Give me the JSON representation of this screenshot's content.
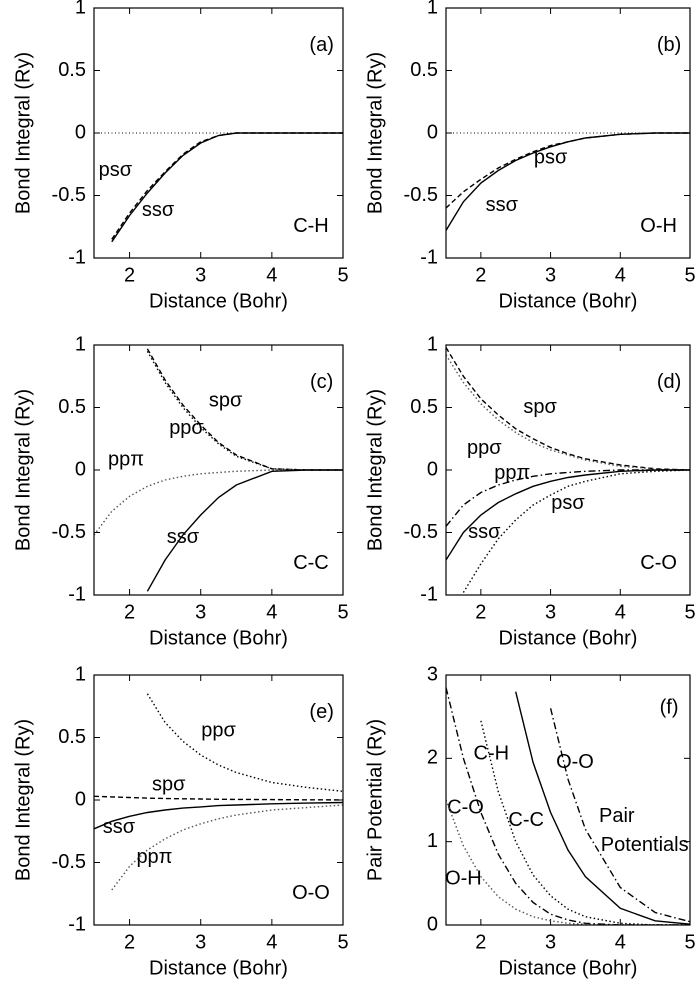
{
  "chart_data": [
    {
      "type": "line",
      "x_label": "Distance (Bohr)",
      "y_label": "Bond Integral (Ry)",
      "annotations": [
        "(a)",
        "C-H"
      ],
      "xlim": [
        1.5,
        5
      ],
      "xticks": [
        2,
        3,
        4,
        5
      ],
      "ylim": [
        -1,
        1
      ],
      "yticks": [
        -1,
        -0.5,
        0,
        0.5,
        1
      ],
      "zero_line": true,
      "x": [
        1.5,
        1.75,
        2,
        2.25,
        2.5,
        2.75,
        3,
        3.25,
        3.5,
        4,
        4.5,
        5
      ],
      "series": [
        {
          "name": "ssσ",
          "color": "#000000",
          "style": "solid",
          "values": [
            null,
            -0.87,
            -0.66,
            -0.48,
            -0.32,
            -0.18,
            -0.08,
            -0.02,
            0,
            0,
            0,
            0
          ]
        },
        {
          "name": "psσ",
          "color": "#000000",
          "style": "dashed",
          "values": [
            null,
            -0.85,
            -0.64,
            -0.46,
            -0.31,
            -0.17,
            -0.07,
            -0.02,
            0,
            0,
            0,
            0
          ]
        }
      ]
    },
    {
      "type": "line",
      "x_label": "Distance (Bohr)",
      "y_label": "Bond Integral (Ry)",
      "annotations": [
        "(b)",
        "O-H"
      ],
      "xlim": [
        1.5,
        5
      ],
      "xticks": [
        2,
        3,
        4,
        5
      ],
      "ylim": [
        -1,
        1
      ],
      "yticks": [
        -1,
        -0.5,
        0,
        0.5,
        1
      ],
      "zero_line": true,
      "x": [
        1.5,
        1.75,
        2,
        2.25,
        2.5,
        2.75,
        3,
        3.25,
        3.5,
        4,
        4.5,
        5
      ],
      "series": [
        {
          "name": "ssσ",
          "color": "#000000",
          "style": "solid",
          "values": [
            -0.78,
            -0.55,
            -0.4,
            -0.3,
            -0.22,
            -0.16,
            -0.11,
            -0.07,
            -0.04,
            -0.01,
            0,
            0
          ]
        },
        {
          "name": "psσ",
          "color": "#000000",
          "style": "dashed",
          "values": [
            -0.6,
            -0.47,
            -0.37,
            -0.28,
            -0.21,
            -0.15,
            -0.1,
            -0.07,
            -0.04,
            -0.01,
            0,
            0
          ]
        }
      ]
    },
    {
      "type": "line",
      "x_label": "Distance (Bohr)",
      "y_label": "Bond Integral (Ry)",
      "annotations": [
        "(c)",
        "C-C"
      ],
      "xlim": [
        1.5,
        5
      ],
      "xticks": [
        2,
        3,
        4,
        5
      ],
      "ylim": [
        -1,
        1
      ],
      "yticks": [
        -1,
        -0.5,
        0,
        0.5,
        1
      ],
      "zero_line": false,
      "x": [
        1.5,
        1.75,
        2,
        2.25,
        2.5,
        2.75,
        3,
        3.25,
        3.5,
        4,
        4.5,
        5
      ],
      "series": [
        {
          "name": "spσ",
          "color": "#000000",
          "style": "dashed",
          "values": [
            null,
            null,
            null,
            0.97,
            0.72,
            0.52,
            0.36,
            0.22,
            0.12,
            0.01,
            0,
            0
          ]
        },
        {
          "name": "ppσ",
          "color": "#000000",
          "style": "dotted",
          "values": [
            null,
            null,
            null,
            0.95,
            0.7,
            0.5,
            0.34,
            0.21,
            0.11,
            0.01,
            0,
            0
          ]
        },
        {
          "name": "ppπ",
          "color": "#555555",
          "style": "dotted",
          "values": [
            -0.52,
            -0.33,
            -0.21,
            -0.13,
            -0.08,
            -0.05,
            -0.03,
            -0.02,
            -0.01,
            0,
            0,
            0
          ]
        },
        {
          "name": "ssσ",
          "color": "#000000",
          "style": "solid",
          "values": [
            null,
            null,
            null,
            -0.97,
            -0.72,
            -0.52,
            -0.36,
            -0.22,
            -0.12,
            -0.01,
            0,
            0
          ]
        }
      ]
    },
    {
      "type": "line",
      "x_label": "Distance (Bohr)",
      "y_label": "Bond Integral (Ry)",
      "annotations": [
        "(d)",
        "C-O"
      ],
      "xlim": [
        1.5,
        5
      ],
      "xticks": [
        2,
        3,
        4,
        5
      ],
      "ylim": [
        -1,
        1
      ],
      "yticks": [
        -1,
        -0.5,
        0,
        0.5,
        1
      ],
      "zero_line": false,
      "x": [
        1.5,
        1.75,
        2,
        2.25,
        2.5,
        2.75,
        3,
        3.25,
        3.5,
        4,
        4.5,
        5
      ],
      "series": [
        {
          "name": "spσ",
          "color": "#000000",
          "style": "dashed",
          "values": [
            0.98,
            0.75,
            0.57,
            0.44,
            0.33,
            0.25,
            0.18,
            0.13,
            0.09,
            0.04,
            0.01,
            0
          ]
        },
        {
          "name": "ppσ",
          "color": "#555555",
          "style": "dotted",
          "values": [
            0.92,
            0.7,
            0.53,
            0.4,
            0.3,
            0.22,
            0.16,
            0.12,
            0.08,
            0.03,
            0.01,
            0
          ]
        },
        {
          "name": "ppπ",
          "color": "#000000",
          "style": "dashdot",
          "values": [
            -0.45,
            -0.28,
            -0.18,
            -0.12,
            -0.08,
            -0.05,
            -0.03,
            -0.02,
            -0.01,
            0,
            0,
            0
          ]
        },
        {
          "name": "ssσ",
          "color": "#000000",
          "style": "solid",
          "values": [
            -0.72,
            -0.5,
            -0.36,
            -0.26,
            -0.19,
            -0.13,
            -0.09,
            -0.06,
            -0.04,
            -0.01,
            0,
            0
          ]
        },
        {
          "name": "psσ",
          "color": "#000000",
          "style": "dotted",
          "values": [
            null,
            -0.98,
            -0.75,
            -0.55,
            -0.4,
            -0.28,
            -0.2,
            -0.13,
            -0.09,
            -0.03,
            -0.01,
            0
          ]
        }
      ]
    },
    {
      "type": "line",
      "x_label": "Distance (Bohr)",
      "y_label": "Bond Integral (Ry)",
      "annotations": [
        "(e)",
        "O-O"
      ],
      "xlim": [
        1.5,
        5
      ],
      "xticks": [
        2,
        3,
        4,
        5
      ],
      "ylim": [
        -1,
        1
      ],
      "yticks": [
        -1,
        -0.5,
        0,
        0.5,
        1
      ],
      "zero_line": false,
      "x": [
        1.5,
        1.75,
        2,
        2.25,
        2.5,
        2.75,
        3,
        3.25,
        3.5,
        4,
        4.5,
        5
      ],
      "series": [
        {
          "name": "ppσ",
          "color": "#000000",
          "style": "dotted",
          "values": [
            null,
            null,
            null,
            0.85,
            0.62,
            0.47,
            0.36,
            0.28,
            0.22,
            0.14,
            0.1,
            0.07
          ]
        },
        {
          "name": "spσ",
          "color": "#000000",
          "style": "dashed",
          "values": [
            0.03,
            0.025,
            0.02,
            0.015,
            0.012,
            0.01,
            0.008,
            0.006,
            0.005,
            0.003,
            0.002,
            0.001
          ]
        },
        {
          "name": "ssσ",
          "color": "#000000",
          "style": "solid",
          "values": [
            -0.23,
            -0.17,
            -0.13,
            -0.1,
            -0.08,
            -0.065,
            -0.055,
            -0.045,
            -0.04,
            -0.03,
            -0.025,
            -0.02
          ]
        },
        {
          "name": "ppπ",
          "color": "#555555",
          "style": "dotted",
          "values": [
            null,
            -0.72,
            -0.53,
            -0.4,
            -0.31,
            -0.24,
            -0.19,
            -0.15,
            -0.12,
            -0.08,
            -0.06,
            -0.04
          ]
        }
      ]
    },
    {
      "type": "line",
      "x_label": "Distance (Bohr)",
      "y_label": "Pair Potential (Ry)",
      "annotations": [
        "(f)",
        "Pair",
        "Potentials"
      ],
      "xlim": [
        1.5,
        5
      ],
      "xticks": [
        2,
        3,
        4,
        5
      ],
      "ylim": [
        0,
        3
      ],
      "yticks": [
        0,
        1,
        2,
        3
      ],
      "zero_line": false,
      "x": [
        1.5,
        1.75,
        2,
        2.25,
        2.5,
        2.75,
        3,
        3.25,
        3.5,
        4,
        4.5,
        5
      ],
      "series": [
        {
          "name": "C-O",
          "color": "#000000",
          "style": "dashdot",
          "values": [
            2.85,
            2.0,
            1.35,
            0.85,
            0.5,
            0.27,
            0.13,
            0.06,
            0.02,
            0,
            0,
            0
          ]
        },
        {
          "name": "O-H",
          "color": "#555555",
          "style": "dotted",
          "values": [
            1.5,
            0.95,
            0.58,
            0.34,
            0.19,
            0.1,
            0.05,
            0.02,
            0.01,
            0,
            0,
            0
          ]
        },
        {
          "name": "C-H",
          "color": "#000000",
          "style": "dotted",
          "values": [
            null,
            null,
            2.45,
            1.6,
            1.0,
            0.6,
            0.35,
            0.19,
            0.1,
            0.02,
            0,
            0
          ]
        },
        {
          "name": "C-C",
          "color": "#000000",
          "style": "solid",
          "values": [
            null,
            null,
            null,
            null,
            2.8,
            1.95,
            1.35,
            0.9,
            0.58,
            0.2,
            0.05,
            0.01
          ]
        },
        {
          "name": "O-O",
          "color": "#000000",
          "style": "dashdot",
          "values": [
            null,
            null,
            null,
            null,
            null,
            null,
            2.6,
            1.75,
            1.15,
            0.45,
            0.15,
            0.04
          ]
        }
      ]
    }
  ]
}
